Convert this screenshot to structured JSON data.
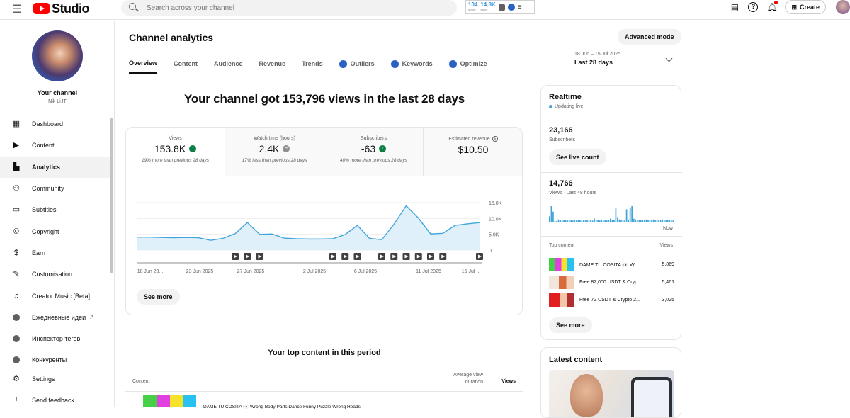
{
  "topbar": {
    "logo_text": "Studio",
    "search_placeholder": "Search across your channel",
    "ext": {
      "stat1": "104",
      "stat1_sub": "60sec",
      "stat2": "14.8K",
      "stat2_sub": "48hrs"
    },
    "create_label": "Create"
  },
  "sidebar": {
    "channel_title": "Your channel",
    "channel_handle": "Nik Li IT",
    "items": [
      {
        "label": "Dashboard",
        "icon": "dashboard-icon"
      },
      {
        "label": "Content",
        "icon": "content-icon"
      },
      {
        "label": "Analytics",
        "icon": "analytics-icon"
      },
      {
        "label": "Community",
        "icon": "community-icon"
      },
      {
        "label": "Subtitles",
        "icon": "subtitles-icon"
      },
      {
        "label": "Copyright",
        "icon": "copyright-icon"
      },
      {
        "label": "Earn",
        "icon": "earn-icon"
      },
      {
        "label": "Customisation",
        "icon": "customisation-icon"
      },
      {
        "label": "Creator Music [Beta]",
        "icon": "creator-music-icon"
      },
      {
        "label": "Ежедневные идеи",
        "icon": "extension-icon"
      },
      {
        "label": "Инспектор тегов",
        "icon": "extension-icon"
      },
      {
        "label": "Конкуренты",
        "icon": "extension-icon"
      }
    ],
    "bottom": [
      {
        "label": "Settings",
        "icon": "settings-icon"
      },
      {
        "label": "Send feedback",
        "icon": "feedback-icon"
      }
    ]
  },
  "main": {
    "title": "Channel analytics",
    "advanced_mode": "Advanced mode",
    "tabs": [
      "Overview",
      "Content",
      "Audience",
      "Revenue",
      "Trends",
      "Outliers",
      "Keywords",
      "Optimize"
    ],
    "date_range": {
      "sub": "18 Jun – 15 Jul 2025",
      "main": "Last 28 days"
    },
    "headline": "Your channel got 153,796 views in the last 28 days",
    "metrics": [
      {
        "label": "Views",
        "value": "153.8K",
        "note": "19% more than previous 28 days",
        "trend": "up"
      },
      {
        "label": "Watch time (hours)",
        "value": "2.4K",
        "note": "17% less than previous 28 days",
        "trend": "neutral"
      },
      {
        "label": "Subscribers",
        "value": "-63",
        "note": "40% more than previous 28 days",
        "trend": "up"
      },
      {
        "label": "Estimated revenue",
        "value": "$10.50",
        "note": "",
        "trend": "none"
      }
    ],
    "see_more": "See more",
    "top_content_title": "Your top content in this period",
    "top_content_cols": {
      "content": "Content",
      "avd_line1": "Average view",
      "avd_line2": "duration",
      "views": "Views"
    },
    "top_content_row_title": "DAME TU COSITA 👀 Wrong Body Parts Dance Funny Puzzle Wrong Heads"
  },
  "chart_data": {
    "type": "area",
    "x_tick_labels": [
      "18 Jun 20...",
      "23 Jun 2025",
      "27 Jun 2025",
      "2 Jul 2025",
      "6 Jul 2025",
      "11 Jul 2025",
      "15 Jul ..."
    ],
    "y_tick_labels": [
      "15.0K",
      "10.0K",
      "5.0K",
      "0"
    ],
    "ylim": [
      0,
      15000
    ],
    "values": [
      4100,
      4100,
      4000,
      3900,
      4000,
      3900,
      3100,
      3700,
      5200,
      8700,
      5000,
      5100,
      3800,
      3600,
      3500,
      3500,
      3600,
      4900,
      7800,
      3700,
      3300,
      8200,
      14000,
      10100,
      5100,
      5300,
      7800,
      8300,
      8700
    ],
    "markers": [
      8,
      9,
      10,
      16,
      17,
      18,
      20,
      21,
      22,
      23,
      24,
      25,
      28
    ],
    "series_color": "#41a5d9",
    "fill_color": "#e0f0fa"
  },
  "realtime": {
    "title": "Realtime",
    "live": "Updating live",
    "subs_value": "23,166",
    "subs_label": "Subscribers",
    "see_live": "See live count",
    "views_value": "14,766",
    "views_label": "Views · Last 48 hours",
    "bars": [
      0.35,
      1,
      0.65,
      0,
      0,
      0.15,
      0.12,
      0.1,
      0.12,
      0.1,
      0.08,
      0.12,
      0.1,
      0.08,
      0.1,
      0.08,
      0.12,
      0.1,
      0.08,
      0.1,
      0.08,
      0.1,
      0.08,
      0.12,
      0.08,
      0.2,
      0.1,
      0.12,
      0.08,
      0.1,
      0.08,
      0.12,
      0.08,
      0.1,
      0.2,
      0.1,
      0.12,
      0.85,
      0.3,
      0.15,
      0.12,
      0.1,
      0.12,
      0.8,
      0.15,
      0.9,
      1,
      0.2,
      0.15,
      0.12,
      0.1,
      0.12,
      0.1,
      0.12,
      0.15,
      0.12,
      0.1,
      0.12,
      0.15,
      0.1,
      0.12,
      0.1,
      0.12,
      0.15,
      0.1,
      0.12,
      0.1,
      0.12,
      0.1,
      0.08
    ],
    "now": "Now",
    "top_content_label": "Top content",
    "views_col": "Views",
    "items": [
      {
        "title": "DAME TU COSITA 👀 Wr...",
        "views": "5,869"
      },
      {
        "title": "Free 82,000 USDT & Cryp...",
        "views": "5,461"
      },
      {
        "title": "Free 72 USDT & Crypto 2...",
        "views": "3,025"
      }
    ],
    "see_more": "See more"
  },
  "latest": {
    "title": "Latest content"
  }
}
